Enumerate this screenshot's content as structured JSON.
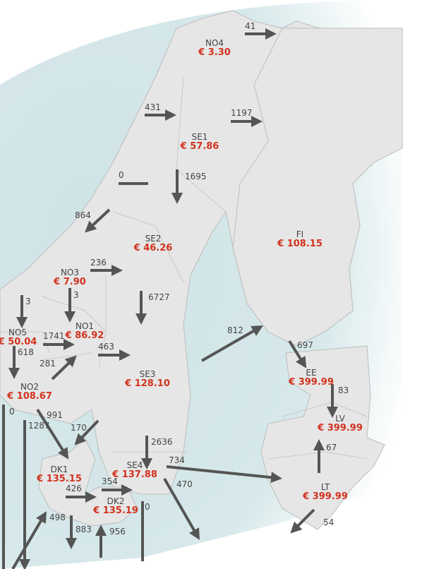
{
  "colors": {
    "price": "#d2321e",
    "land": "#e6e6e6",
    "sea": "#d3e6e8",
    "arrow": "#555555",
    "border": "#bdbdbd"
  },
  "zones": [
    {
      "name": "NO4",
      "price": "€ 3.30"
    },
    {
      "name": "SE1",
      "price": "€ 57.86"
    },
    {
      "name": "SE2",
      "price": "€ 46.26"
    },
    {
      "name": "FI",
      "price": "€ 108.15"
    },
    {
      "name": "NO3",
      "price": "€ 7.90"
    },
    {
      "name": "NO5",
      "price": "€ 50.04"
    },
    {
      "name": "NO1",
      "price": "€ 86.92"
    },
    {
      "name": "NO2",
      "price": "€ 108.67"
    },
    {
      "name": "SE3",
      "price": "€ 128.10"
    },
    {
      "name": "EE",
      "price": "€ 399.99"
    },
    {
      "name": "LV",
      "price": "€ 399.99"
    },
    {
      "name": "SE4",
      "price": "€ 137.88"
    },
    {
      "name": "DK1",
      "price": "€ 135.15"
    },
    {
      "name": "DK2",
      "price": "€ 135.19"
    },
    {
      "name": "LT",
      "price": "€ 399.99"
    }
  ],
  "flows": [
    "41",
    "431",
    "1197",
    "0",
    "1695",
    "864",
    "236",
    "3",
    "6727",
    "3",
    "1741",
    "618",
    "463",
    "281",
    "812",
    "697",
    "83",
    "0",
    "1287",
    "991",
    "170",
    "2636",
    "734",
    "470",
    "67",
    "426",
    "354",
    "0",
    "498",
    "883",
    "956",
    "54"
  ]
}
